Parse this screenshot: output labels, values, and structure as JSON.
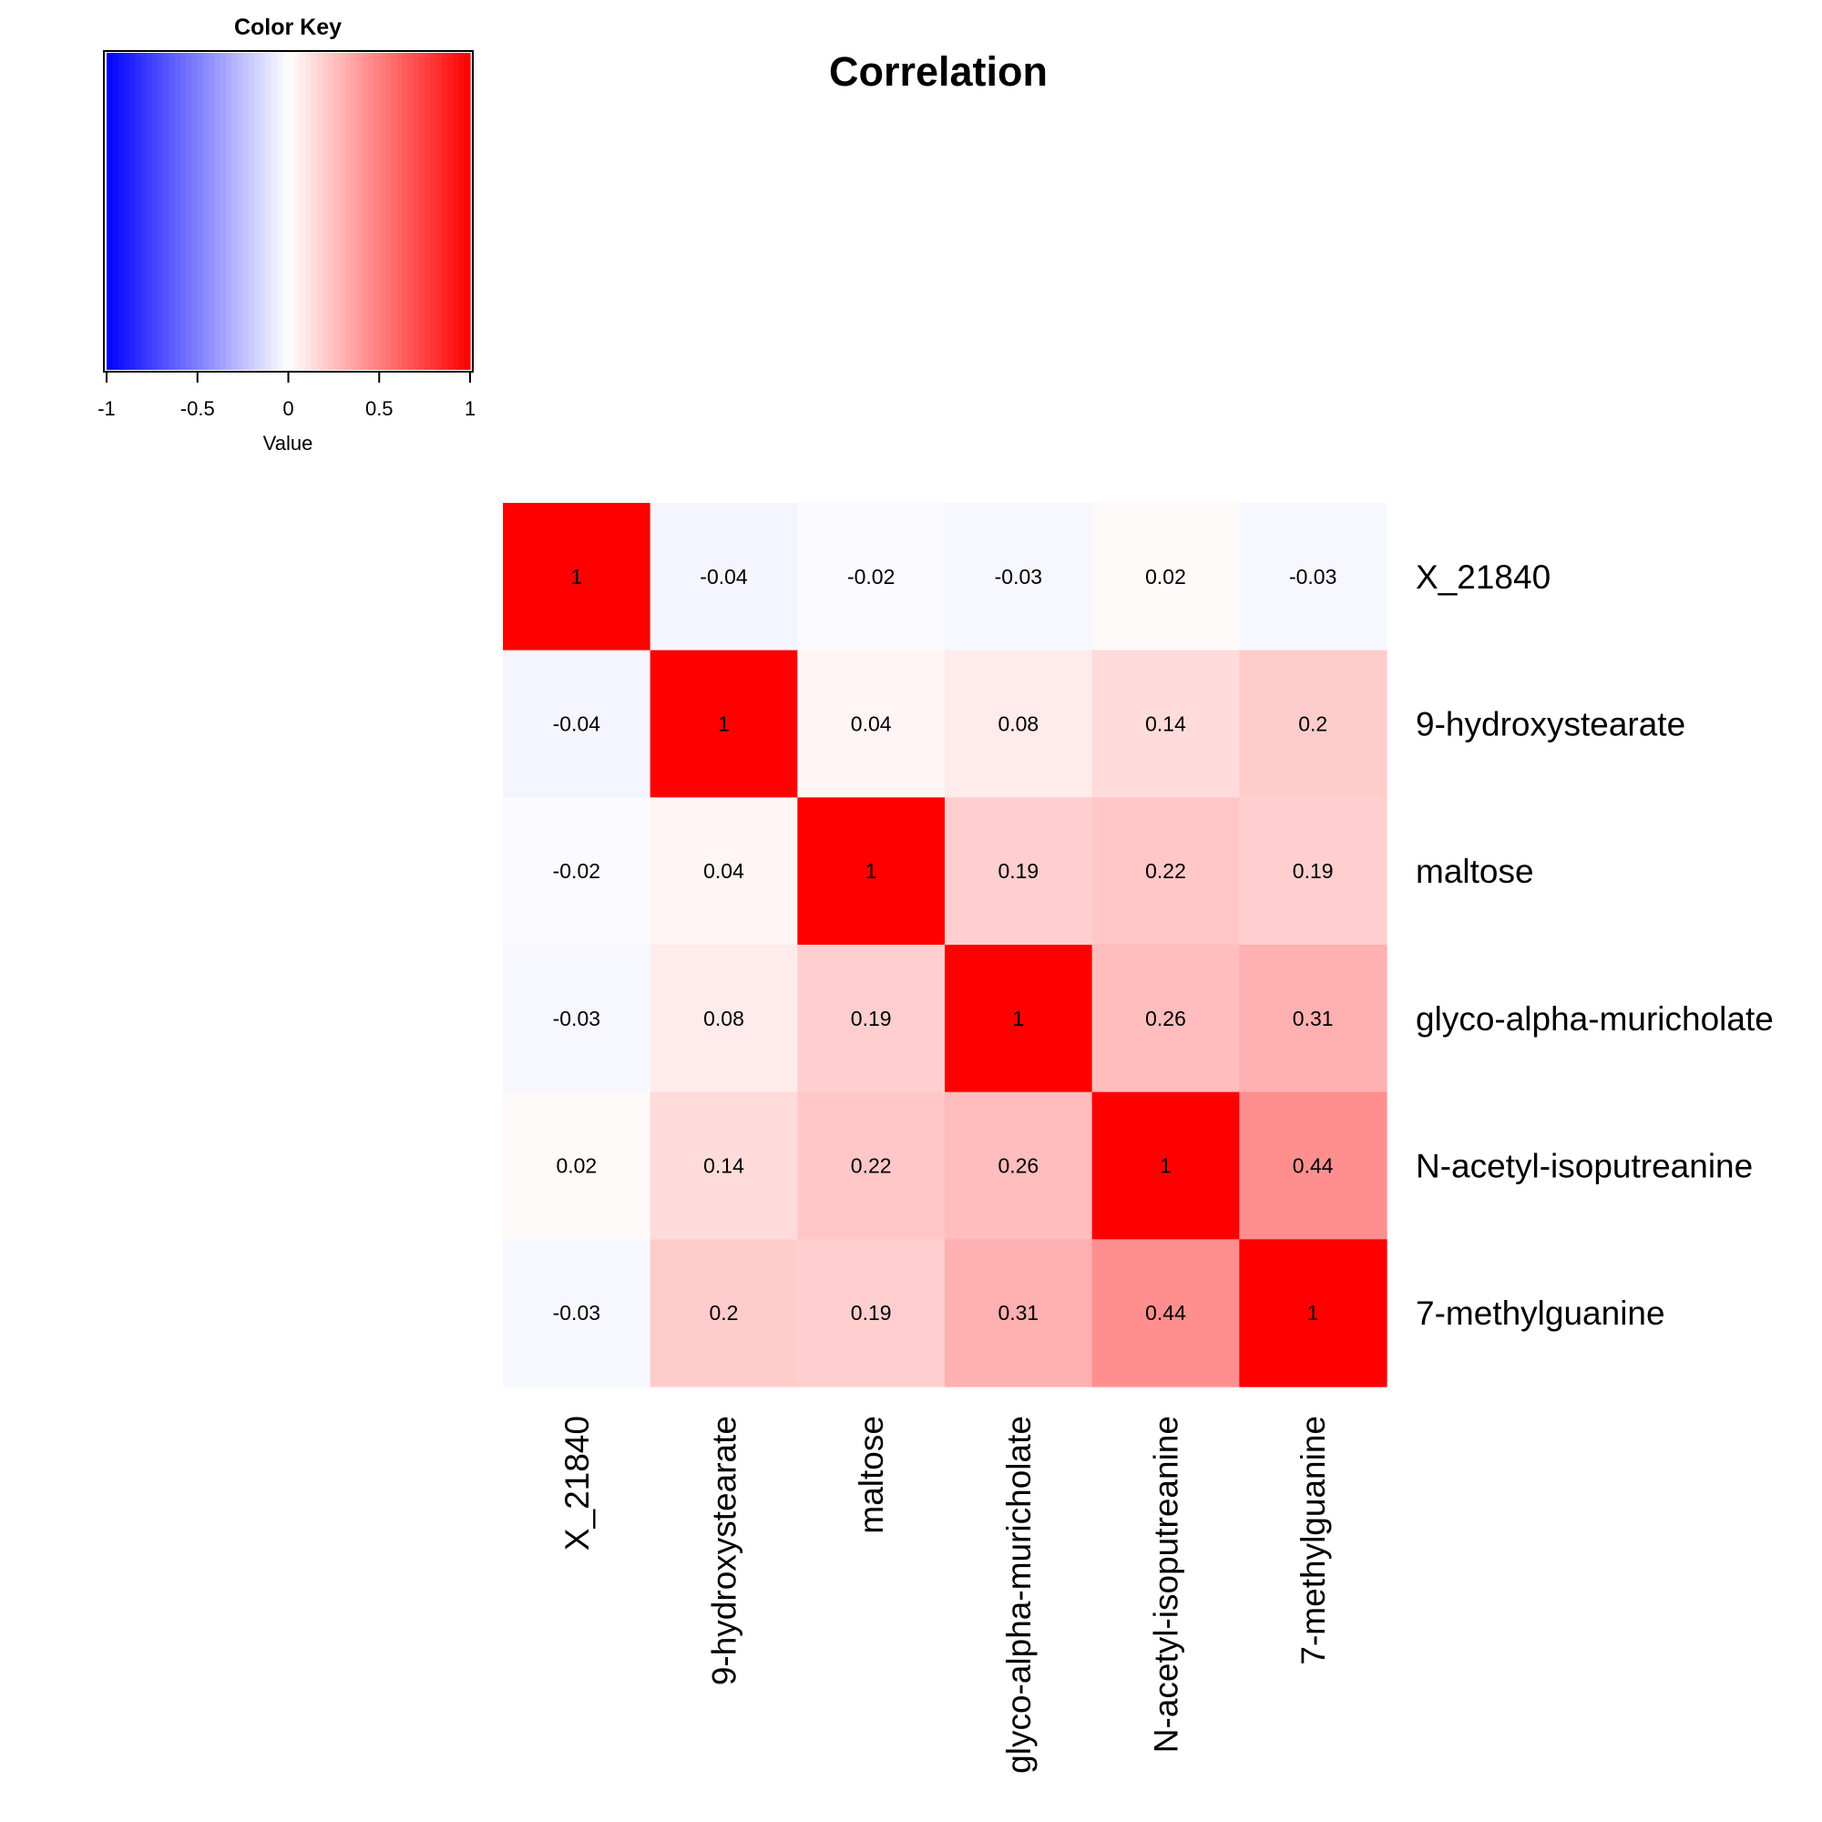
{
  "chart_data": {
    "type": "heatmap",
    "title": "Correlation",
    "rows": [
      "X_21840",
      "9-hydroxystearate",
      "maltose",
      "glyco-alpha-muricholate",
      "N-acetyl-isoputreanine",
      "7-methylguanine"
    ],
    "columns": [
      "X_21840",
      "9-hydroxystearate",
      "maltose",
      "glyco-alpha-muricholate",
      "N-acetyl-isoputreanine",
      "7-methylguanine"
    ],
    "values": [
      [
        1,
        -0.04,
        -0.02,
        -0.03,
        0.02,
        -0.03
      ],
      [
        -0.04,
        1,
        0.04,
        0.08,
        0.14,
        0.2
      ],
      [
        -0.02,
        0.04,
        1,
        0.19,
        0.22,
        0.19
      ],
      [
        -0.03,
        0.08,
        0.19,
        1,
        0.26,
        0.31
      ],
      [
        0.02,
        0.14,
        0.22,
        0.26,
        1,
        0.44
      ],
      [
        -0.03,
        0.2,
        0.19,
        0.31,
        0.44,
        1
      ]
    ],
    "color_scale": {
      "low": "#0000ff",
      "mid": "#ffffff",
      "high": "#ff0000",
      "range": [
        -1,
        1
      ]
    },
    "color_key": {
      "title": "Color Key",
      "xlabel": "Value",
      "ticks": [
        "-1",
        "-0.5",
        "0",
        "0.5",
        "1"
      ],
      "tick_values": [
        -1,
        -0.5,
        0,
        0.5,
        1
      ]
    }
  }
}
